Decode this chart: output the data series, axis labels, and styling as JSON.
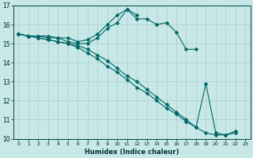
{
  "xlabel": "Humidex (Indice chaleur)",
  "bg_color": "#c8e8e8",
  "line_color": "#006666",
  "grid_color": "#aacccc",
  "xlim": [
    -0.5,
    23.5
  ],
  "ylim": [
    10,
    17
  ],
  "yticks": [
    10,
    11,
    12,
    13,
    14,
    15,
    16,
    17
  ],
  "xticks": [
    0,
    1,
    2,
    3,
    4,
    5,
    6,
    7,
    8,
    9,
    10,
    11,
    12,
    13,
    14,
    15,
    16,
    17,
    18,
    19,
    20,
    21,
    22,
    23
  ],
  "series": [
    {
      "x": [
        0,
        1,
        2,
        3,
        4,
        5,
        6,
        7,
        8,
        9,
        10,
        11,
        12,
        13,
        14,
        15,
        16,
        17,
        18
      ],
      "y": [
        15.5,
        15.4,
        15.4,
        15.4,
        15.3,
        15.3,
        15.1,
        15.2,
        15.5,
        16.0,
        16.5,
        16.8,
        16.3,
        16.3,
        16.0,
        16.1,
        15.6,
        14.7,
        14.7
      ]
    },
    {
      "x": [
        0,
        1,
        2,
        3,
        4,
        5,
        6,
        7,
        8,
        9,
        10,
        11,
        12
      ],
      "y": [
        15.5,
        15.4,
        15.4,
        15.3,
        15.3,
        15.1,
        15.0,
        15.0,
        15.3,
        15.8,
        16.1,
        16.8,
        16.5
      ]
    },
    {
      "x": [
        0,
        1,
        2,
        3,
        4,
        5,
        6,
        7,
        8,
        9,
        10,
        11,
        12,
        13,
        14,
        15,
        16,
        17,
        18,
        19,
        20,
        21,
        22
      ],
      "y": [
        15.5,
        15.4,
        15.3,
        15.2,
        15.1,
        15.0,
        14.8,
        14.5,
        14.2,
        13.8,
        13.5,
        13.1,
        12.7,
        12.4,
        12.0,
        11.6,
        11.3,
        10.9,
        10.6,
        12.9,
        10.3,
        10.2,
        10.4
      ]
    },
    {
      "x": [
        0,
        1,
        2,
        3,
        4,
        5,
        6,
        7,
        8,
        9,
        10,
        11,
        12,
        13,
        14,
        15,
        16,
        17,
        18,
        19,
        20,
        21,
        22
      ],
      "y": [
        15.5,
        15.4,
        15.3,
        15.2,
        15.1,
        15.0,
        14.9,
        14.7,
        14.4,
        14.1,
        13.7,
        13.3,
        13.0,
        12.6,
        12.2,
        11.8,
        11.4,
        11.0,
        10.6,
        10.3,
        10.2,
        10.2,
        10.3
      ]
    }
  ]
}
